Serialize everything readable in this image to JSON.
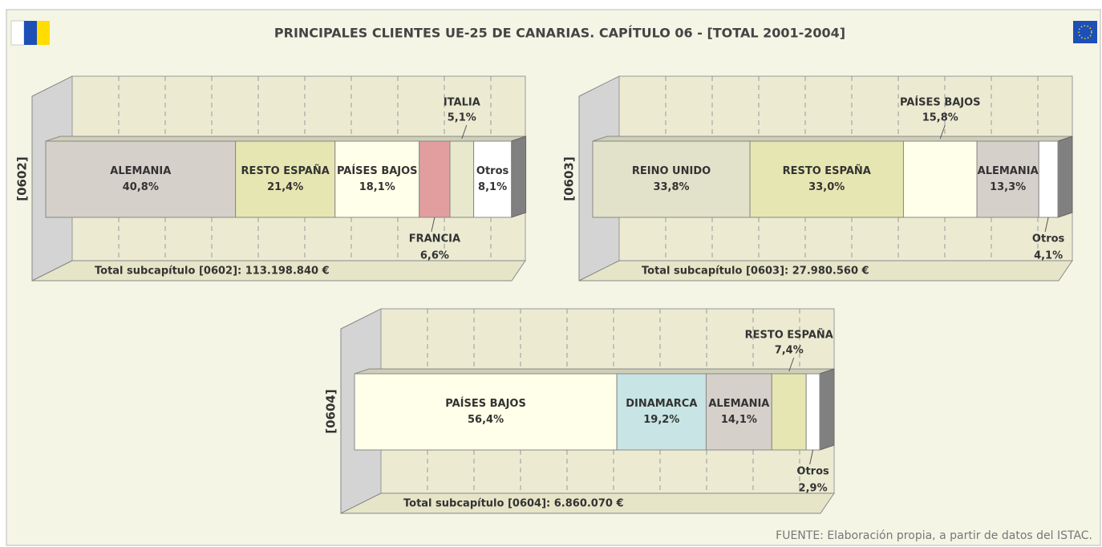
{
  "title": "PRINCIPALES CLIENTES UE-25 DE CANARIAS. CAPÍTULO 06 - [TOTAL 2001-2004]",
  "source": "FUENTE: Elaboración propia, a partir de datos del ISTAC.",
  "chart_data": [
    {
      "type": "stacked_bar",
      "ylabel": "[0602]",
      "total": "Total subcapítulo [0602]: 113.198.840 €",
      "categories": [
        "ALEMANIA",
        "RESTO ESPAÑA",
        "PAÍSES BAJOS",
        "FRANCIA",
        "ITALIA",
        "Otros"
      ],
      "values": [
        40.8,
        21.4,
        18.1,
        6.6,
        5.1,
        8.1
      ],
      "value_labels": [
        "40,8%",
        "21,4%",
        "18,1%",
        "6,6%",
        "5,1%",
        "8,1%"
      ],
      "colors": [
        "#d6d0ca",
        "#e6e6b2",
        "#ffffea",
        "#e29e9e",
        "#e8e8cc",
        "#ffffff"
      ],
      "xlim": [
        0,
        100
      ],
      "xticks": [
        10,
        20,
        30,
        40,
        50,
        60,
        70,
        80,
        90
      ],
      "grid": true
    },
    {
      "type": "stacked_bar",
      "ylabel": "[0603]",
      "total": "Total subcapítulo [0603]: 27.980.560 €",
      "categories": [
        "REINO UNIDO",
        "RESTO ESPAÑA",
        "PAÍSES BAJOS",
        "ALEMANIA",
        "Otros"
      ],
      "values": [
        33.8,
        33.0,
        15.8,
        13.3,
        4.1
      ],
      "value_labels": [
        "33,8%",
        "33,0%",
        "15,8%",
        "13,3%",
        "4,1%"
      ],
      "colors": [
        "#e2e2ca",
        "#e6e6b2",
        "#ffffea",
        "#d6d0ca",
        "#ffffff"
      ],
      "xlim": [
        0,
        100
      ],
      "xticks": [
        10,
        20,
        30,
        40,
        50,
        60,
        70,
        80,
        90
      ],
      "grid": true
    },
    {
      "type": "stacked_bar",
      "ylabel": "[0604]",
      "total": "Total subcapítulo [0604]: 6.860.070 €",
      "categories": [
        "PAÍSES BAJOS",
        "DINAMARCA",
        "ALEMANIA",
        "RESTO ESPAÑA",
        "Otros"
      ],
      "values": [
        56.4,
        19.2,
        14.1,
        7.4,
        2.9
      ],
      "value_labels": [
        "56,4%",
        "19,2%",
        "14,1%",
        "7,4%",
        "2,9%"
      ],
      "colors": [
        "#ffffea",
        "#c8e4e4",
        "#d6d0ca",
        "#e6e6b2",
        "#ffffff"
      ],
      "xlim": [
        0,
        100
      ],
      "xticks": [
        10,
        20,
        30,
        40,
        50,
        60,
        70,
        80,
        90
      ],
      "grid": true
    }
  ]
}
